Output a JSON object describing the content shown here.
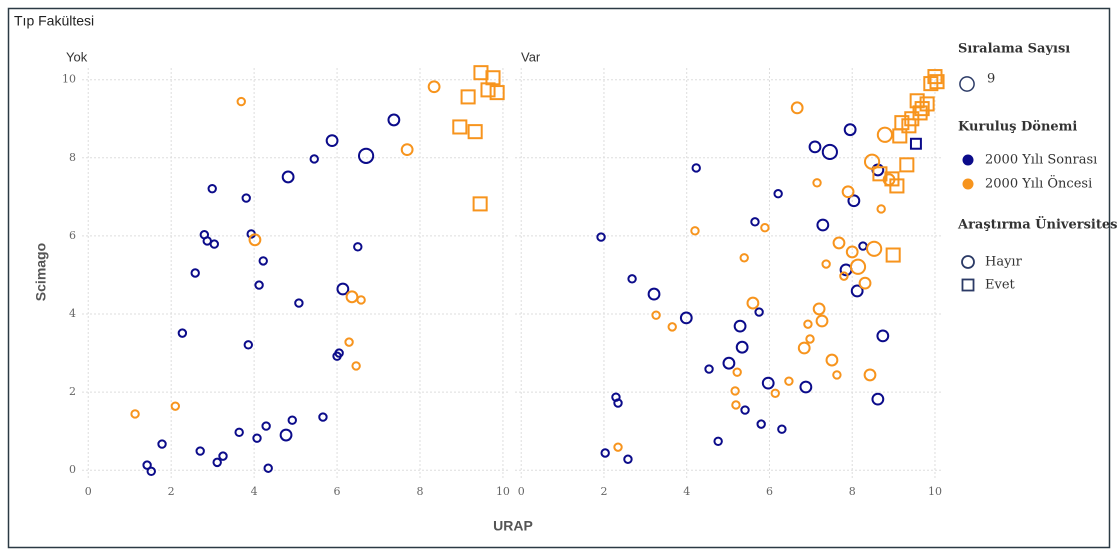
{
  "title": "Tıp Fakültesi",
  "x_label": "URAP",
  "y_label": "Scimago",
  "legends": [
    {
      "title": "Sıralama Sayısı",
      "items": [
        {
          "label": "9",
          "size": 9
        }
      ]
    },
    {
      "title": "Kuruluş Dönemi",
      "items": [
        {
          "label": "2000 Yılı Sonrası",
          "color": "#0b0b8a"
        },
        {
          "label": "2000 Yılı Öncesi",
          "color": "#f7941d"
        }
      ]
    },
    {
      "title": "Araştırma Üniversitesi",
      "items": [
        {
          "label": "Hayır",
          "shape": "circle"
        },
        {
          "label": "Evet",
          "shape": "square"
        }
      ]
    }
  ],
  "chart_data": [
    {
      "type": "scatter",
      "title": "Yok",
      "xlim": [
        -0.15,
        10.17
      ],
      "ylim": [
        -0.2,
        10.3
      ],
      "xticks": [
        0,
        2,
        4,
        6,
        8,
        10
      ],
      "yticks": [
        0,
        2,
        4,
        6,
        8,
        10
      ],
      "grid": true,
      "series": [
        {
          "color": "#0b0b8a",
          "shape": "circle",
          "x": [
            1.42,
            1.52,
            1.78,
            2.27,
            2.58,
            2.7,
            2.8,
            2.87,
            3.04,
            2.99,
            3.11,
            3.25,
            3.64,
            3.81,
            3.86,
            3.93,
            4.07,
            4.12,
            4.22,
            4.29,
            4.34,
            4.77,
            4.82,
            4.92,
            5.08,
            5.45,
            5.66,
            5.88,
            6.0,
            6.05,
            6.14,
            6.5,
            6.7,
            7.37
          ],
          "y": [
            0.13,
            -0.03,
            0.67,
            3.51,
            5.05,
            0.49,
            6.03,
            5.87,
            5.79,
            7.21,
            0.2,
            0.36,
            0.97,
            6.97,
            3.21,
            6.05,
            0.82,
            4.74,
            5.36,
            1.13,
            0.05,
            0.9,
            7.51,
            1.28,
            4.28,
            7.97,
            1.36,
            8.44,
            2.92,
            3.0,
            4.64,
            5.72,
            8.05,
            8.97
          ],
          "sizes": [
            1,
            1,
            1,
            1,
            1,
            1,
            1,
            1,
            1,
            1,
            1,
            1,
            1,
            1,
            1,
            1,
            1,
            1,
            1,
            1,
            1,
            4,
            4,
            1,
            1,
            1,
            1,
            4,
            1,
            1,
            4,
            1,
            9,
            4
          ]
        },
        {
          "color": "#f7941d",
          "shape": "circle",
          "x": [
            1.13,
            2.1,
            3.69,
            4.02,
            6.29,
            6.36,
            6.58,
            6.46,
            7.69,
            8.34
          ],
          "y": [
            1.44,
            1.64,
            9.44,
            5.9,
            3.28,
            4.44,
            4.36,
            2.67,
            8.21,
            9.82
          ],
          "sizes": [
            1,
            1,
            1,
            4,
            1,
            4,
            1,
            1,
            4,
            4
          ]
        },
        {
          "color": "#f7941d",
          "shape": "square",
          "x": [
            8.96,
            9.16,
            9.33,
            9.47,
            9.45,
            9.64,
            9.76,
            9.86
          ],
          "y": [
            8.79,
            9.56,
            8.67,
            10.18,
            6.82,
            9.74,
            10.05,
            9.67
          ],
          "sizes": [
            9,
            9,
            9,
            9,
            9,
            9,
            9,
            9
          ]
        }
      ]
    },
    {
      "type": "scatter",
      "title": "Var",
      "xlim": [
        -0.15,
        10.17
      ],
      "ylim": [
        -0.2,
        10.3
      ],
      "xticks": [
        0,
        2,
        4,
        6,
        8,
        10
      ],
      "yticks": [
        0,
        2,
        4,
        6,
        8,
        10
      ],
      "grid": true,
      "series": [
        {
          "color": "#0b0b8a",
          "shape": "circle",
          "x": [
            1.93,
            2.03,
            2.29,
            2.34,
            2.58,
            2.68,
            3.21,
            3.99,
            4.23,
            4.54,
            4.76,
            5.02,
            5.29,
            5.34,
            5.41,
            5.65,
            5.75,
            5.8,
            5.97,
            6.21,
            6.3,
            6.88,
            7.1,
            7.29,
            7.46,
            7.85,
            7.95,
            8.04,
            8.12,
            8.26,
            8.62,
            8.62,
            8.74
          ],
          "y": [
            5.97,
            0.44,
            1.87,
            1.72,
            0.28,
            4.9,
            4.51,
            3.9,
            7.74,
            2.59,
            0.74,
            2.74,
            3.69,
            3.15,
            1.54,
            6.36,
            4.05,
            1.18,
            2.23,
            7.08,
            1.05,
            2.13,
            8.28,
            6.28,
            8.15,
            5.13,
            8.72,
            6.9,
            4.59,
            5.74,
            7.69,
            1.82,
            3.44
          ],
          "sizes": [
            1,
            1,
            1,
            1,
            1,
            1,
            4,
            4,
            1,
            1,
            1,
            4,
            4,
            4,
            1,
            1,
            1,
            1,
            4,
            1,
            1,
            4,
            4,
            4,
            9,
            4,
            4,
            4,
            4,
            1,
            4,
            4,
            4
          ]
        },
        {
          "color": "#f7941d",
          "shape": "circle",
          "x": [
            2.34,
            3.26,
            3.65,
            4.2,
            5.17,
            5.19,
            5.22,
            5.39,
            5.6,
            5.89,
            6.14,
            6.47,
            6.67,
            6.84,
            6.93,
            6.98,
            7.15,
            7.2,
            7.27,
            7.37,
            7.51,
            7.63,
            7.68,
            7.8,
            7.9,
            8.0,
            8.14,
            8.31,
            8.43,
            8.48,
            8.53,
            8.7,
            8.79,
            8.89
          ],
          "y": [
            0.59,
            3.97,
            3.67,
            6.13,
            2.03,
            1.67,
            2.51,
            5.44,
            4.28,
            6.21,
            1.97,
            2.28,
            9.28,
            3.13,
            3.74,
            3.36,
            7.36,
            4.13,
            3.82,
            5.28,
            2.82,
            2.44,
            5.82,
            4.97,
            7.13,
            5.59,
            5.21,
            4.79,
            2.44,
            7.9,
            5.67,
            6.69,
            8.59,
            7.44
          ],
          "sizes": [
            1,
            1,
            1,
            1,
            1,
            1,
            1,
            1,
            4,
            1,
            1,
            1,
            4,
            4,
            1,
            1,
            1,
            4,
            4,
            1,
            4,
            1,
            4,
            1,
            4,
            4,
            9,
            4,
            4,
            9,
            9,
            1,
            9,
            4
          ]
        },
        {
          "color": "#f7941d",
          "shape": "square",
          "x": [
            8.67,
            8.96,
            9.08,
            9.15,
            9.2,
            9.32,
            8.99,
            9.37,
            9.44,
            9.57,
            9.64,
            9.69,
            9.81,
            9.9,
            10.0,
            10.05
          ],
          "y": [
            7.59,
            7.46,
            7.28,
            8.56,
            8.9,
            7.82,
            5.51,
            8.82,
            9.0,
            9.46,
            9.15,
            9.26,
            9.38,
            9.9,
            10.08,
            9.95
          ],
          "sizes": [
            9,
            9,
            9,
            9,
            9,
            9,
            9,
            9,
            9,
            9,
            9,
            9,
            9,
            9,
            9,
            9
          ]
        },
        {
          "color": "#0b0b8a",
          "shape": "square",
          "x": [
            9.54
          ],
          "y": [
            8.36
          ],
          "sizes": [
            4
          ]
        }
      ]
    }
  ]
}
